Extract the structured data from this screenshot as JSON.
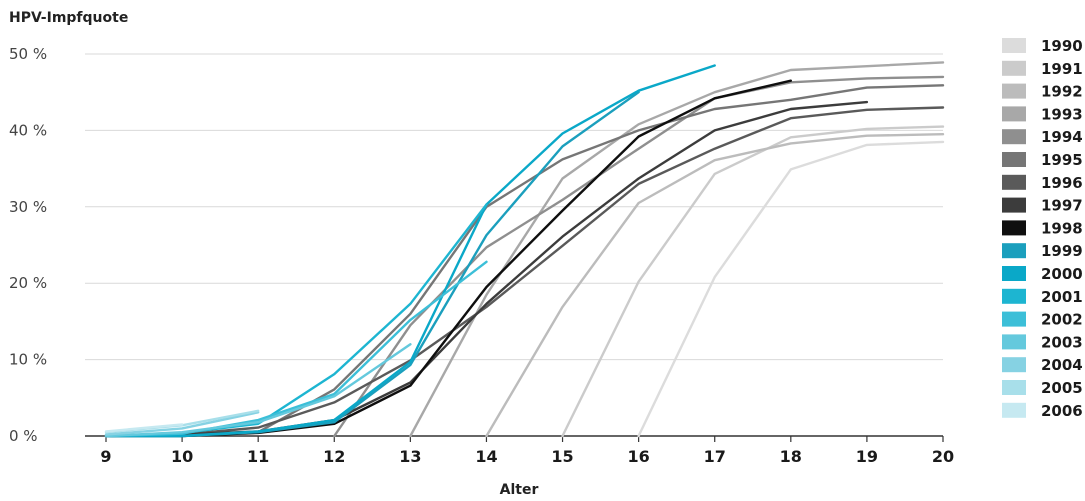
{
  "chart_data": {
    "type": "line",
    "ylabel": "HPV-Impfquote",
    "xlabel": "Alter",
    "x": [
      9,
      10,
      11,
      12,
      13,
      14,
      15,
      16,
      17,
      18,
      19,
      20
    ],
    "xlim": [
      9,
      20
    ],
    "ylim": [
      0,
      50
    ],
    "yticks": [
      "0 %",
      "10 %",
      "20 %",
      "30 %",
      "40 %",
      "50 %"
    ],
    "grid": true,
    "legend": "right",
    "series": [
      {
        "name": "1990",
        "color": "#dcdcdc",
        "points": [
          [
            16,
            0
          ],
          [
            17,
            20.8
          ],
          [
            18,
            34.9
          ],
          [
            19,
            38.1
          ],
          [
            20,
            38.5
          ]
        ]
      },
      {
        "name": "1991",
        "color": "#cbcbcb",
        "points": [
          [
            15,
            0
          ],
          [
            16,
            20.2
          ],
          [
            17,
            34.3
          ],
          [
            18,
            39.1
          ],
          [
            19,
            40.2
          ],
          [
            20,
            40.5
          ]
        ]
      },
      {
        "name": "1992",
        "color": "#bcbcbc",
        "points": [
          [
            14,
            0
          ],
          [
            15,
            16.9
          ],
          [
            16,
            30.5
          ],
          [
            17,
            36.1
          ],
          [
            18,
            38.3
          ],
          [
            19,
            39.3
          ],
          [
            20,
            39.5
          ]
        ]
      },
      {
        "name": "1993",
        "color": "#a8a8a8",
        "points": [
          [
            13,
            0
          ],
          [
            14,
            18.5
          ],
          [
            15,
            33.7
          ],
          [
            16,
            40.8
          ],
          [
            17,
            45.0
          ],
          [
            18,
            47.9
          ],
          [
            19,
            48.4
          ],
          [
            20,
            48.9
          ]
        ]
      },
      {
        "name": "1994",
        "color": "#8f8f8f",
        "points": [
          [
            12,
            0
          ],
          [
            13,
            14.5
          ],
          [
            14,
            24.7
          ],
          [
            15,
            30.9
          ],
          [
            16,
            37.6
          ],
          [
            17,
            44.2
          ],
          [
            18,
            46.3
          ],
          [
            19,
            46.8
          ],
          [
            20,
            47.0
          ]
        ]
      },
      {
        "name": "1995",
        "color": "#767676",
        "points": [
          [
            11,
            0.5
          ],
          [
            12,
            6.1
          ],
          [
            13,
            16.0
          ],
          [
            14,
            30.0
          ],
          [
            15,
            36.2
          ],
          [
            16,
            40.0
          ],
          [
            17,
            42.8
          ],
          [
            18,
            44.0
          ],
          [
            19,
            45.6
          ],
          [
            20,
            45.9
          ]
        ]
      },
      {
        "name": "1996",
        "color": "#5a5a5a",
        "points": [
          [
            10,
            0.2
          ],
          [
            11,
            1.1
          ],
          [
            12,
            4.4
          ],
          [
            13,
            9.9
          ],
          [
            14,
            16.9
          ],
          [
            15,
            24.9
          ],
          [
            16,
            33.0
          ],
          [
            17,
            37.6
          ],
          [
            18,
            41.6
          ],
          [
            19,
            42.7
          ],
          [
            20,
            43.0
          ]
        ]
      },
      {
        "name": "1997",
        "color": "#3c3c3c",
        "points": [
          [
            9,
            0
          ],
          [
            10,
            0.2
          ],
          [
            11,
            0.6
          ],
          [
            12,
            2.1
          ],
          [
            13,
            7.0
          ],
          [
            14,
            17.3
          ],
          [
            15,
            26.1
          ],
          [
            16,
            33.7
          ],
          [
            17,
            40.0
          ],
          [
            18,
            42.8
          ],
          [
            19,
            43.7
          ]
        ]
      },
      {
        "name": "1998",
        "color": "#0f0f0f",
        "points": [
          [
            9,
            0
          ],
          [
            10,
            0
          ],
          [
            11,
            0.4
          ],
          [
            12,
            1.6
          ],
          [
            13,
            6.6
          ],
          [
            14,
            19.5
          ],
          [
            15,
            29.5
          ],
          [
            16,
            39.2
          ],
          [
            17,
            44.2
          ],
          [
            18,
            46.5
          ]
        ]
      },
      {
        "name": "1999",
        "color": "#1b9fbd",
        "points": [
          [
            9,
            0
          ],
          [
            10,
            0
          ],
          [
            11,
            0.5
          ],
          [
            12,
            1.8
          ],
          [
            13,
            9.3
          ],
          [
            14,
            26.3
          ],
          [
            15,
            37.9
          ],
          [
            16,
            45.0
          ]
        ]
      },
      {
        "name": "2000",
        "color": "#0aa8c8",
        "points": [
          [
            9,
            0
          ],
          [
            10,
            0
          ],
          [
            11,
            0.6
          ],
          [
            12,
            2.1
          ],
          [
            13,
            9.7
          ],
          [
            14,
            30.3
          ],
          [
            15,
            39.6
          ],
          [
            16,
            45.2
          ],
          [
            17,
            48.5
          ]
        ]
      },
      {
        "name": "2001",
        "color": "#1db5d1",
        "points": [
          [
            9,
            0
          ],
          [
            10,
            0.4
          ],
          [
            11,
            1.6
          ],
          [
            12,
            8.1
          ],
          [
            13,
            17.3
          ],
          [
            14,
            30.3
          ]
        ]
      },
      {
        "name": "2002",
        "color": "#3cbfd8",
        "points": [
          [
            9,
            0
          ],
          [
            10,
            0.3
          ],
          [
            11,
            2.1
          ],
          [
            12,
            5.5
          ],
          [
            13,
            15.2
          ],
          [
            14,
            22.8
          ]
        ]
      },
      {
        "name": "2003",
        "color": "#64c9dd",
        "points": [
          [
            9,
            0
          ],
          [
            10,
            0.5
          ],
          [
            11,
            1.8
          ],
          [
            12,
            5.2
          ],
          [
            13,
            12.0
          ]
        ]
      },
      {
        "name": "2004",
        "color": "#86d2e3",
        "points": [
          [
            9,
            0.2
          ],
          [
            10,
            1.0
          ],
          [
            11,
            3.1
          ]
        ]
      },
      {
        "name": "2005",
        "color": "#a8dfea",
        "points": [
          [
            9,
            0.5
          ],
          [
            10,
            1.4
          ],
          [
            11,
            3.3
          ]
        ]
      },
      {
        "name": "2006",
        "color": "#c6e9f1",
        "points": [
          [
            9,
            0.6
          ],
          [
            10,
            1.5
          ]
        ]
      }
    ]
  }
}
